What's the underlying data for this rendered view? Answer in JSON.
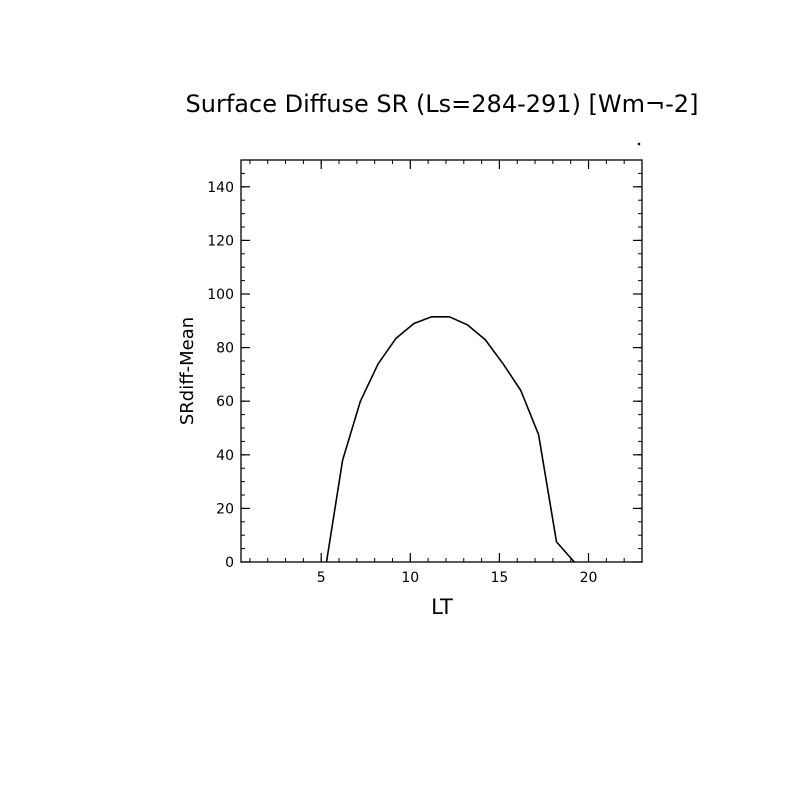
{
  "chart_data": {
    "type": "line",
    "title": "Surface Diffuse SR (Ls=284-291) [Wm¬-2]",
    "xlabel": "LT",
    "ylabel": "SRdiff-Mean",
    "xlim": [
      0.5,
      23.0
    ],
    "ylim": [
      0,
      150
    ],
    "x_ticks": [
      5,
      10,
      15,
      20
    ],
    "y_ticks": [
      0,
      20,
      40,
      60,
      80,
      100,
      120,
      140
    ],
    "x_minor_step": 1,
    "y_minor_step": 5,
    "grid": false,
    "legend": "none",
    "series": [
      {
        "x": [
          5.3,
          6.2,
          7.2,
          8.2,
          9.2,
          10.2,
          11.2,
          12.2,
          13.2,
          14.2,
          15.2,
          16.2,
          17.2,
          18.2,
          19.2
        ],
        "y": [
          0,
          38,
          60,
          74,
          83.5,
          89,
          91.5,
          91.5,
          88.5,
          83,
          74,
          64,
          47.5,
          7.5,
          0
        ]
      }
    ],
    "colors": {
      "line": "#000000",
      "axes": "#000000",
      "text": "#000000",
      "background": "#ffffff"
    }
  }
}
